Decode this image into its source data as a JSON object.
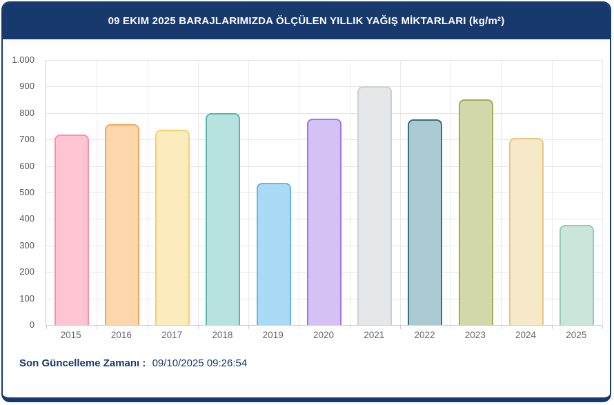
{
  "header": {
    "title": "09 EKIM 2025 BARAJLARIMIZDA ÖLÇÜLEN YILLIK YAĞIŞ MİKTARLARI (kg/m²)"
  },
  "footer": {
    "label": "Son Güncelleme Zamanı :",
    "value": "09/10/2025 09:26:54"
  },
  "colors": {
    "navy": "#17396D",
    "grid": "#E6E6E6",
    "axis": "#CCCCCC",
    "tick_text": "#555555",
    "xlabel_text": "#666666"
  },
  "chart_data": {
    "type": "bar",
    "title": "09 EKIM 2025 BARAJLARIMIZDA ÖLÇÜLEN YILLIK YAĞIŞ MİKTARLARI (kg/m²)",
    "categories": [
      "2015",
      "2016",
      "2017",
      "2018",
      "2019",
      "2020",
      "2021",
      "2022",
      "2023",
      "2024",
      "2025"
    ],
    "values": [
      720,
      757,
      736,
      800,
      536,
      779,
      900,
      775,
      852,
      707,
      378
    ],
    "bar_fill_colors": [
      "#FFC5D3",
      "#FDD6AC",
      "#FCEBBD",
      "#B7E2DE",
      "#ABDAF7",
      "#D4C2F5",
      "#E6E7E9",
      "#ACCAD2",
      "#D2D8A9",
      "#F6E9C9",
      "#CBE5DB"
    ],
    "bar_border_colors": [
      "#F890A9",
      "#F5A45C",
      "#F4D06F",
      "#55B9AF",
      "#66B5E8",
      "#A273E8",
      "#CDCFD4",
      "#35707E",
      "#A3A855",
      "#EBC77E",
      "#90CDB5"
    ],
    "xlabel": "",
    "ylabel": "",
    "ylim": [
      0,
      1000
    ],
    "y_tick_step": 100,
    "y_tick_labels": [
      "0",
      "100",
      "200",
      "300",
      "400",
      "500",
      "600",
      "700",
      "800",
      "900",
      "1.000"
    ],
    "grid": true,
    "legend": false
  }
}
